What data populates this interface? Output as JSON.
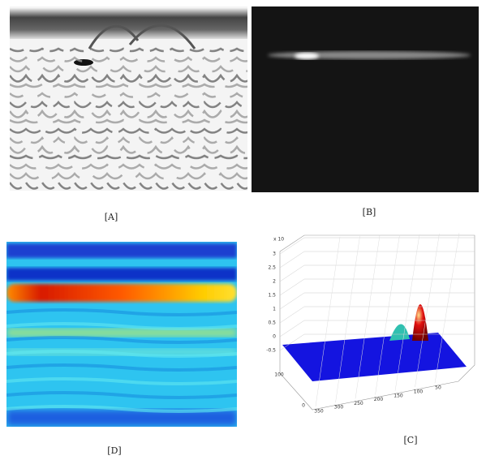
{
  "panels": [
    {
      "label": "[A]"
    },
    {
      "label": "[B]"
    },
    {
      "label": "[D]"
    },
    {
      "label": "[C]",
      "z_exponent": "x 10",
      "z_ticks": [
        "3",
        "2.5",
        "2",
        "1.5",
        "1",
        "0.5",
        "0",
        "-0.5"
      ],
      "x_ticks": [
        "350",
        "300",
        "250",
        "200",
        "150",
        "100",
        "50"
      ],
      "y_ticks": [
        "100",
        "0"
      ]
    }
  ]
}
